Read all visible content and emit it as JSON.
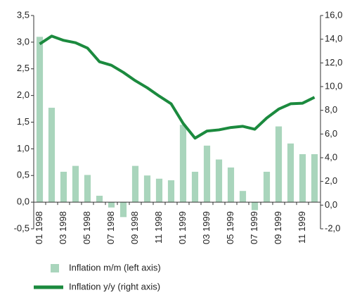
{
  "chart_data": {
    "type": "bar_line",
    "categories": [
      "01 1998",
      null,
      "03 1998",
      null,
      "05 1998",
      null,
      "07 1998",
      null,
      "09 1998",
      null,
      "11 1998",
      null,
      "01 1999",
      null,
      "03 1999",
      null,
      "05 1999",
      null,
      "07 1999",
      null,
      "09 1999",
      null,
      "11 1999",
      null
    ],
    "series": [
      {
        "name": "Inflation m/m (left axis)",
        "color": "#a9d5bc",
        "type": "bar",
        "values": [
          3.1,
          1.77,
          0.57,
          0.68,
          0.51,
          0.12,
          -0.1,
          -0.28,
          0.68,
          0.5,
          0.44,
          0.41,
          1.45,
          0.57,
          1.06,
          0.8,
          0.65,
          0.21,
          -0.15,
          0.57,
          1.42,
          1.1,
          0.9,
          0.9
        ]
      },
      {
        "name": "Inflation y/y (right axis)",
        "color": "#1b8a3e",
        "type": "line",
        "axis": "y2",
        "values": [
          13.6,
          14.26,
          13.9,
          13.7,
          13.25,
          12.1,
          11.8,
          11.2,
          10.5,
          9.9,
          9.2,
          8.55,
          6.9,
          5.65,
          6.25,
          6.35,
          6.55,
          6.65,
          6.4,
          7.35,
          8.1,
          8.55,
          8.6,
          9.1
        ]
      }
    ],
    "ylim": [
      -0.5,
      3.5
    ],
    "yticks": [
      {
        "value": -0.5,
        "label": "-0,5"
      },
      {
        "value": 0,
        "label": "0,0"
      },
      {
        "value": 0.5,
        "label": "0,5"
      },
      {
        "value": 1,
        "label": "1,0"
      },
      {
        "value": 1.5,
        "label": "1,5"
      },
      {
        "value": 2,
        "label": "2,0"
      },
      {
        "value": 2.5,
        "label": "2,5"
      },
      {
        "value": 3,
        "label": "3,0"
      },
      {
        "value": 3.5,
        "label": "3,5"
      }
    ],
    "y2lim": [
      -2,
      16
    ],
    "y2ticks": [
      {
        "value": -2,
        "label": "-2,0"
      },
      {
        "value": 0,
        "label": "0,0"
      },
      {
        "value": 2,
        "label": "2,0"
      },
      {
        "value": 4,
        "label": "4,0"
      },
      {
        "value": 6,
        "label": "6,0"
      },
      {
        "value": 8,
        "label": "8,0"
      },
      {
        "value": 10,
        "label": "10,0"
      },
      {
        "value": 12,
        "label": "12,0"
      },
      {
        "value": 14,
        "label": "14,0"
      },
      {
        "value": 16,
        "label": "16,0"
      }
    ]
  }
}
